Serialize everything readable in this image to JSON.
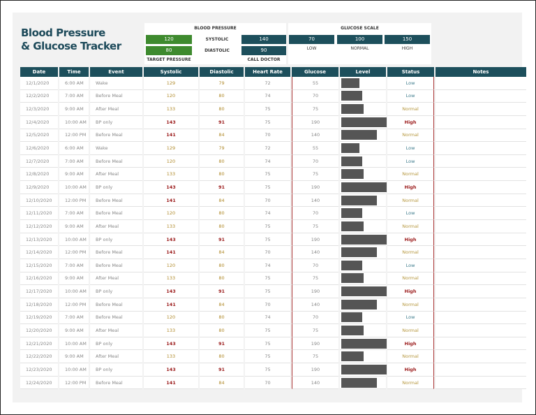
{
  "title_line1": "Blood Pressure",
  "title_line2": "& Glucose Tracker",
  "bp": {
    "heading": "BLOOD PRESSURE",
    "target_systolic": "120",
    "target_diastolic": "80",
    "target_label": "TARGET PRESSURE",
    "systolic_label": "SYSTOLIC",
    "diastolic_label": "DIASTOLIC",
    "call_systolic": "140",
    "call_diastolic": "90",
    "call_label": "CALL DOCTOR"
  },
  "glucose_scale": {
    "heading": "GLUCOSE SCALE",
    "low": "70",
    "normal": "100",
    "high": "150",
    "low_label": "LOW",
    "normal_label": "NORMAL",
    "high_label": "HIGH"
  },
  "columns": [
    "Date",
    "Time",
    "Event",
    "Systolic",
    "Diastolic",
    "Heart Rate",
    "Glucose",
    "Level",
    "Status",
    "Notes"
  ],
  "rows": [
    [
      "12/1/2020",
      "6:00 AM",
      "Wake",
      "129",
      "79",
      "72",
      "55",
      "Low"
    ],
    [
      "12/2/2020",
      "7:00 AM",
      "Before Meal",
      "120",
      "80",
      "74",
      "70",
      "Low"
    ],
    [
      "12/3/2020",
      "9:00 AM",
      "After Meal",
      "133",
      "80",
      "75",
      "75",
      "Normal"
    ],
    [
      "12/4/2020",
      "10:00 AM",
      "BP only",
      "143",
      "91",
      "75",
      "190",
      "High"
    ],
    [
      "12/5/2020",
      "12:00 PM",
      "Before Meal",
      "141",
      "84",
      "70",
      "140",
      "Normal"
    ],
    [
      "12/6/2020",
      "6:00 AM",
      "Wake",
      "129",
      "79",
      "72",
      "55",
      "Low"
    ],
    [
      "12/7/2020",
      "7:00 AM",
      "Before Meal",
      "120",
      "80",
      "74",
      "70",
      "Low"
    ],
    [
      "12/8/2020",
      "9:00 AM",
      "After Meal",
      "133",
      "80",
      "75",
      "75",
      "Normal"
    ],
    [
      "12/9/2020",
      "10:00 AM",
      "BP only",
      "143",
      "91",
      "75",
      "190",
      "High"
    ],
    [
      "12/10/2020",
      "12:00 PM",
      "Before Meal",
      "141",
      "84",
      "70",
      "140",
      "Normal"
    ],
    [
      "12/11/2020",
      "7:00 AM",
      "Before Meal",
      "120",
      "80",
      "74",
      "70",
      "Low"
    ],
    [
      "12/12/2020",
      "9:00 AM",
      "After Meal",
      "133",
      "80",
      "75",
      "75",
      "Normal"
    ],
    [
      "12/13/2020",
      "10:00 AM",
      "BP only",
      "143",
      "91",
      "75",
      "190",
      "High"
    ],
    [
      "12/14/2020",
      "12:00 PM",
      "Before Meal",
      "141",
      "84",
      "70",
      "140",
      "Normal"
    ],
    [
      "12/15/2020",
      "7:00 AM",
      "Before Meal",
      "120",
      "80",
      "74",
      "70",
      "Low"
    ],
    [
      "12/16/2020",
      "9:00 AM",
      "After Meal",
      "133",
      "80",
      "75",
      "75",
      "Normal"
    ],
    [
      "12/17/2020",
      "10:00 AM",
      "BP only",
      "143",
      "91",
      "75",
      "190",
      "High"
    ],
    [
      "12/18/2020",
      "12:00 PM",
      "Before Meal",
      "141",
      "84",
      "70",
      "140",
      "Normal"
    ],
    [
      "12/19/2020",
      "7:00 AM",
      "Before Meal",
      "120",
      "80",
      "74",
      "70",
      "Low"
    ],
    [
      "12/20/2020",
      "9:00 AM",
      "After Meal",
      "133",
      "80",
      "75",
      "75",
      "Normal"
    ],
    [
      "12/21/2020",
      "10:00 AM",
      "BP only",
      "143",
      "91",
      "75",
      "190",
      "High"
    ],
    [
      "12/22/2020",
      "9:00 AM",
      "After Meal",
      "133",
      "80",
      "75",
      "75",
      "Normal"
    ],
    [
      "12/23/2020",
      "10:00 AM",
      "BP only",
      "143",
      "91",
      "75",
      "190",
      "High"
    ],
    [
      "12/24/2020",
      "12:00 PM",
      "Before Meal",
      "141",
      "84",
      "70",
      "140",
      "Normal"
    ]
  ],
  "colors": {
    "header": "#1d4f5c",
    "target": "#3e8a2e",
    "high": "#9b1b1b",
    "bar": "#555555"
  }
}
